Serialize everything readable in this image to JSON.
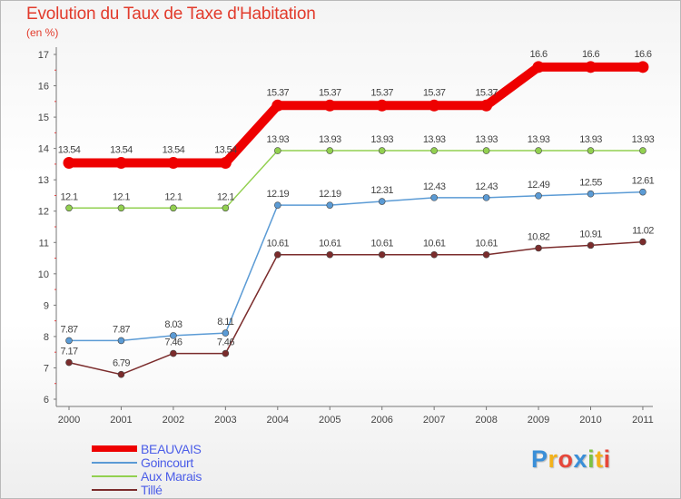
{
  "title": "Evolution du Taux de Taxe d'Habitation",
  "subtitle": "(en %)",
  "logo": {
    "letters": [
      "P",
      "r",
      "o",
      "x",
      "i",
      "t",
      "i"
    ],
    "colors": [
      "#3a8fd8",
      "#f3b21b",
      "#e6473a",
      "#3a8fd8",
      "#7cc243",
      "#f3b21b",
      "#e6473a"
    ]
  },
  "chart_data": {
    "type": "line",
    "title": "Evolution du Taux de Taxe d'Habitation",
    "ylabel": "(en %)",
    "xlabel": "",
    "ylim": [
      6,
      17
    ],
    "yticks": [
      "6",
      "7",
      "8",
      "9",
      "10",
      "11",
      "12",
      "13",
      "14",
      "15",
      "16",
      "17"
    ],
    "categories": [
      "2000",
      "2001",
      "2002",
      "2003",
      "2004",
      "2005",
      "2006",
      "2007",
      "2008",
      "2009",
      "2010",
      "2011"
    ],
    "series": [
      {
        "name": "BEAUVAIS",
        "color": "#ee0000",
        "thick": true,
        "values": [
          13.54,
          13.54,
          13.54,
          13.54,
          15.37,
          15.37,
          15.37,
          15.37,
          15.37,
          16.6,
          16.6,
          16.6
        ],
        "labels": [
          "13.54",
          "13.54",
          "13.54",
          "13.54",
          "15.37",
          "15.37",
          "15.37",
          "15.37",
          "15.37",
          "16.6",
          "16.6",
          "16.6"
        ]
      },
      {
        "name": "Goincourt",
        "color": "#5b9bd5",
        "thick": false,
        "values": [
          7.87,
          7.87,
          8.03,
          8.11,
          12.19,
          12.19,
          12.31,
          12.43,
          12.43,
          12.49,
          12.55,
          12.61
        ],
        "labels": [
          "7.87",
          "7.87",
          "8.03",
          "8.11",
          "12.19",
          "12.19",
          "12.31",
          "12.43",
          "12.43",
          "12.49",
          "12.55",
          "12.61"
        ]
      },
      {
        "name": "Aux Marais",
        "color": "#92d050",
        "thick": false,
        "values": [
          12.1,
          12.1,
          12.1,
          12.1,
          13.93,
          13.93,
          13.93,
          13.93,
          13.93,
          13.93,
          13.93,
          13.93
        ],
        "labels": [
          "12.1",
          "12.1",
          "12.1",
          "12.1",
          "13.93",
          "13.93",
          "13.93",
          "13.93",
          "13.93",
          "13.93",
          "13.93",
          "13.93"
        ]
      },
      {
        "name": "Tillé",
        "color": "#7b2c2c",
        "thick": false,
        "values": [
          7.17,
          6.79,
          7.46,
          7.46,
          10.61,
          10.61,
          10.61,
          10.61,
          10.61,
          10.82,
          10.91,
          11.02
        ],
        "labels": [
          "7.17",
          "6.79",
          "7.46",
          "7.46",
          "10.61",
          "10.61",
          "10.61",
          "10.61",
          "10.61",
          "10.82",
          "10.91",
          "11.02"
        ]
      }
    ],
    "grid": false,
    "legend": "bottom-left"
  }
}
